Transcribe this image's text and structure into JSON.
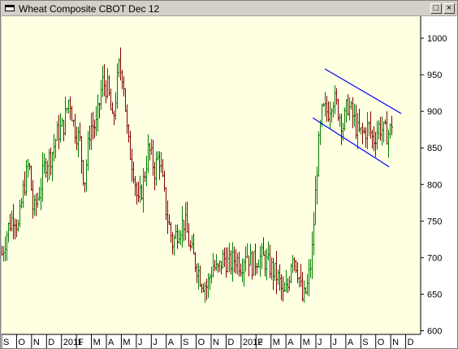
{
  "window": {
    "title": "Wheat Composite CBOT Dec 12",
    "maximize_glyph": "□",
    "close_glyph": "×"
  },
  "colors": {
    "background": "#ffffe1",
    "up_bar": "#008000",
    "down_bar": "#800000",
    "trendline": "#0000ff",
    "axis": "#000000"
  },
  "chart_data": {
    "type": "ohlc",
    "title": "",
    "xlabel": "",
    "ylabel": "",
    "ylim": [
      595,
      1030
    ],
    "y_ticks": [
      "600",
      "650",
      "700",
      "750",
      "800",
      "850",
      "900",
      "950",
      "1000"
    ],
    "x_labels": [
      "S",
      "O",
      "N",
      "D",
      "2011",
      "F",
      "M",
      "A",
      "M",
      "J",
      "J",
      "A",
      "S",
      "O",
      "N",
      "D",
      "2012",
      "F",
      "M",
      "A",
      "M",
      "J",
      "J",
      "A",
      "S",
      "O",
      "N",
      "D"
    ],
    "x_label_months": [
      0,
      1,
      2,
      3,
      4,
      5,
      6,
      7,
      8,
      9,
      10,
      11,
      12,
      13,
      14,
      15,
      16,
      17,
      18,
      19,
      20,
      21,
      22,
      23,
      24,
      25,
      26,
      27
    ],
    "x_start": "2010-09",
    "x_end": "2012-12",
    "anchors": [
      [
        0.0,
        705
      ],
      [
        0.4,
        740
      ],
      [
        0.8,
        760
      ],
      [
        1.1,
        740
      ],
      [
        1.4,
        790
      ],
      [
        1.8,
        830
      ],
      [
        2.1,
        760
      ],
      [
        2.5,
        790
      ],
      [
        2.9,
        830
      ],
      [
        3.3,
        840
      ],
      [
        3.7,
        870
      ],
      [
        4.1,
        880
      ],
      [
        4.5,
        920
      ],
      [
        4.8,
        880
      ],
      [
        5.2,
        860
      ],
      [
        5.5,
        800
      ],
      [
        5.9,
        880
      ],
      [
        6.3,
        880
      ],
      [
        6.7,
        940
      ],
      [
        7.1,
        930
      ],
      [
        7.4,
        880
      ],
      [
        7.8,
        960
      ],
      [
        8.1,
        950
      ],
      [
        8.4,
        860
      ],
      [
        8.8,
        820
      ],
      [
        9.1,
        770
      ],
      [
        9.5,
        810
      ],
      [
        9.8,
        850
      ],
      [
        10.2,
        820
      ],
      [
        10.5,
        840
      ],
      [
        11.0,
        760
      ],
      [
        11.4,
        720
      ],
      [
        11.8,
        740
      ],
      [
        12.2,
        750
      ],
      [
        12.6,
        710
      ],
      [
        13.0,
        690
      ],
      [
        13.3,
        670
      ],
      [
        13.7,
        660
      ],
      [
        14.1,
        690
      ],
      [
        14.4,
        680
      ],
      [
        14.8,
        700
      ],
      [
        15.2,
        690
      ],
      [
        15.6,
        700
      ],
      [
        16.0,
        690
      ],
      [
        16.3,
        710
      ],
      [
        16.7,
        690
      ],
      [
        17.1,
        700
      ],
      [
        17.4,
        700
      ],
      [
        17.8,
        690
      ],
      [
        18.2,
        680
      ],
      [
        18.5,
        670
      ],
      [
        18.8,
        645
      ],
      [
        19.1,
        660
      ],
      [
        19.4,
        710
      ],
      [
        19.8,
        680
      ],
      [
        20.1,
        640
      ],
      [
        20.4,
        660
      ],
      [
        20.7,
        700
      ],
      [
        20.9,
        770
      ],
      [
        21.1,
        840
      ],
      [
        21.4,
        900
      ],
      [
        21.8,
        900
      ],
      [
        22.1,
        920
      ],
      [
        22.5,
        900
      ],
      [
        22.8,
        880
      ],
      [
        23.1,
        910
      ],
      [
        23.5,
        890
      ],
      [
        23.8,
        870
      ],
      [
        24.2,
        870
      ],
      [
        24.5,
        880
      ],
      [
        24.8,
        860
      ],
      [
        25.2,
        880
      ],
      [
        25.6,
        870
      ],
      [
        25.9,
        870
      ],
      [
        26.1,
        890
      ]
    ],
    "trendlines": [
      {
        "name": "",
        "points": [
          [
            21.6,
            958
          ],
          [
            26.7,
            897
          ]
        ]
      },
      {
        "name": "",
        "points": [
          [
            20.8,
            891
          ],
          [
            25.9,
            824
          ]
        ]
      }
    ],
    "grid": false
  }
}
